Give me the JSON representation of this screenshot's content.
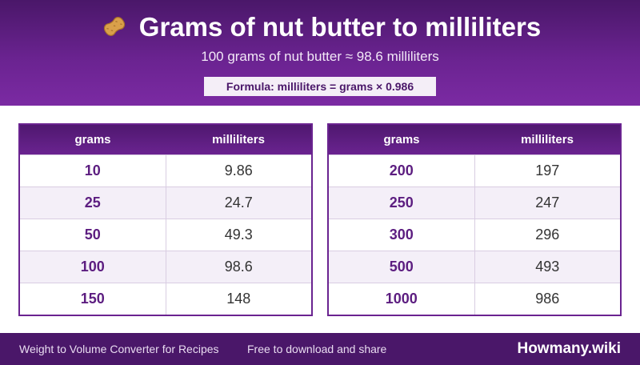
{
  "header": {
    "icon": "peanut-icon",
    "title": "Grams of nut butter to milliliters",
    "subtitle": "100 grams of nut butter ≈ 98.6 milliliters",
    "formula": "Formula: milliliters = grams × 0.986"
  },
  "tables": [
    {
      "headers": [
        "grams",
        "milliliters"
      ],
      "rows": [
        [
          "10",
          "9.86"
        ],
        [
          "25",
          "24.7"
        ],
        [
          "50",
          "49.3"
        ],
        [
          "100",
          "98.6"
        ],
        [
          "150",
          "148"
        ]
      ]
    },
    {
      "headers": [
        "grams",
        "milliliters"
      ],
      "rows": [
        [
          "200",
          "197"
        ],
        [
          "250",
          "247"
        ],
        [
          "300",
          "296"
        ],
        [
          "500",
          "493"
        ],
        [
          "1000",
          "986"
        ]
      ]
    }
  ],
  "footer": {
    "left_text": "Weight to Volume Converter for Recipes",
    "mid_text": "Free to download and share",
    "brand": "Howmany.wiki"
  },
  "colors": {
    "header_bg": "#5a1f80",
    "accent": "#6a2390",
    "footer_bg": "#4a1769",
    "alt_row": "#f4eff8"
  }
}
